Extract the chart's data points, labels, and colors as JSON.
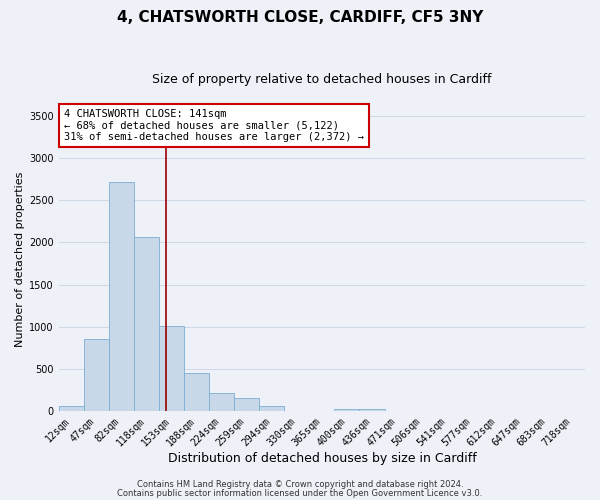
{
  "title": "4, CHATSWORTH CLOSE, CARDIFF, CF5 3NY",
  "subtitle": "Size of property relative to detached houses in Cardiff",
  "xlabel": "Distribution of detached houses by size in Cardiff",
  "ylabel": "Number of detached properties",
  "bar_labels": [
    "12sqm",
    "47sqm",
    "82sqm",
    "118sqm",
    "153sqm",
    "188sqm",
    "224sqm",
    "259sqm",
    "294sqm",
    "330sqm",
    "365sqm",
    "400sqm",
    "436sqm",
    "471sqm",
    "506sqm",
    "541sqm",
    "577sqm",
    "612sqm",
    "647sqm",
    "683sqm",
    "718sqm"
  ],
  "bar_values": [
    55,
    850,
    2720,
    2060,
    1005,
    455,
    215,
    150,
    55,
    0,
    0,
    25,
    20,
    0,
    0,
    0,
    0,
    0,
    0,
    0,
    0
  ],
  "bar_color": "#c8d8e8",
  "bar_edge_color": "#7bafd4",
  "annotation_box_text": "4 CHATSWORTH CLOSE: 141sqm\n← 68% of detached houses are smaller (5,122)\n31% of semi-detached houses are larger (2,372) →",
  "annotation_box_facecolor": "white",
  "annotation_box_edgecolor": "#cc0000",
  "vline_x_index": 3.76,
  "vline_color": "#990000",
  "ylim": [
    0,
    3600
  ],
  "yticks": [
    0,
    500,
    1000,
    1500,
    2000,
    2500,
    3000,
    3500
  ],
  "grid_color": "#ccd8e8",
  "background_color": "#eef2f8",
  "footer_line1": "Contains HM Land Registry data © Crown copyright and database right 2024.",
  "footer_line2": "Contains public sector information licensed under the Open Government Licence v3.0.",
  "title_fontsize": 11,
  "subtitle_fontsize": 9,
  "xlabel_fontsize": 9,
  "ylabel_fontsize": 8,
  "tick_fontsize": 7,
  "annotation_fontsize": 7.5,
  "footer_fontsize": 6
}
